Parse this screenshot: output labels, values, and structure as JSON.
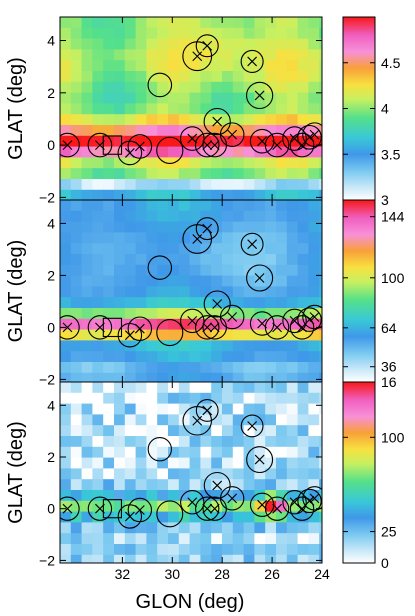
{
  "figure": {
    "xlabel": "GLON (deg)",
    "ylabel": "GLAT (deg)"
  },
  "chart_data": [
    {
      "type": "heatmap",
      "panel": "top",
      "xlim": [
        34.5,
        24
      ],
      "ylim": [
        -2.1,
        4.9
      ],
      "xticks": [
        32,
        30,
        28,
        26,
        24
      ],
      "yticks": [
        -2,
        0,
        2,
        4
      ],
      "colorbar": {
        "min": 3,
        "max": 5,
        "ticks": [
          3,
          3.5,
          4,
          4.5
        ],
        "tick_labels": [
          "3",
          "3.5",
          "4",
          "4.5"
        ]
      },
      "field": "bright band near GLAT 0; bright blob near GLON 27 GLAT 4; dark band near GLAT -1.7"
    },
    {
      "type": "heatmap",
      "panel": "middle",
      "xlim": [
        34.5,
        24
      ],
      "ylim": [
        -2.1,
        4.9
      ],
      "xticks": [
        32,
        30,
        28,
        26,
        24
      ],
      "yticks": [
        -2,
        0,
        2,
        4
      ],
      "colorbar": {
        "min": 25,
        "max": 156,
        "ticks": [
          36,
          64,
          100,
          144
        ],
        "tick_labels": [
          "36",
          "64",
          "100",
          "144"
        ]
      },
      "field": "bright band near GLAT 0; broad dark region GLAT 1.5-3.5"
    },
    {
      "type": "heatmap",
      "panel": "bottom",
      "xlim": [
        34.5,
        24
      ],
      "ylim": [
        -2.1,
        4.9
      ],
      "xticks": [
        32,
        30,
        28,
        26,
        24
      ],
      "yticks": [
        -2,
        0,
        2,
        4
      ],
      "colorbar": {
        "min": 0,
        "max": 144,
        "ticks": [
          0,
          25,
          100
        ],
        "tick_labels": [
          "0",
          "25",
          "100"
        ],
        "top_label": "16"
      },
      "field": "noisy; hot spot near GLON 25.9 GLAT 0.1"
    }
  ],
  "sources": {
    "circles": [
      {
        "l": 34.2,
        "b": 0.0,
        "r": 0.45
      },
      {
        "l": 32.9,
        "b": 0.0,
        "r": 0.45
      },
      {
        "l": 31.7,
        "b": -0.3,
        "r": 0.45
      },
      {
        "l": 31.3,
        "b": -0.05,
        "r": 0.45
      },
      {
        "l": 30.5,
        "b": 2.3,
        "r": 0.45
      },
      {
        "l": 30.1,
        "b": -0.2,
        "r": 0.5
      },
      {
        "l": 29.0,
        "b": 3.4,
        "r": 0.55
      },
      {
        "l": 28.6,
        "b": 3.8,
        "r": 0.42
      },
      {
        "l": 29.2,
        "b": 0.25,
        "r": 0.45
      },
      {
        "l": 28.6,
        "b": 0.0,
        "r": 0.45
      },
      {
        "l": 28.2,
        "b": 0.9,
        "r": 0.5
      },
      {
        "l": 28.3,
        "b": 0.0,
        "r": 0.45
      },
      {
        "l": 27.6,
        "b": 0.4,
        "r": 0.45
      },
      {
        "l": 26.8,
        "b": 3.2,
        "r": 0.42
      },
      {
        "l": 26.5,
        "b": 1.9,
        "r": 0.5
      },
      {
        "l": 26.4,
        "b": 0.15,
        "r": 0.45
      },
      {
        "l": 25.8,
        "b": 0.0,
        "r": 0.45
      },
      {
        "l": 25.1,
        "b": 0.25,
        "r": 0.45
      },
      {
        "l": 24.8,
        "b": 0.0,
        "r": 0.45
      },
      {
        "l": 24.5,
        "b": 0.3,
        "r": 0.45
      },
      {
        "l": 24.3,
        "b": 0.4,
        "r": 0.45
      }
    ],
    "crosses": [
      {
        "l": 34.2,
        "b": 0.0
      },
      {
        "l": 32.9,
        "b": 0.0
      },
      {
        "l": 31.7,
        "b": -0.3
      },
      {
        "l": 31.3,
        "b": -0.05
      },
      {
        "l": 29.0,
        "b": 3.4
      },
      {
        "l": 28.6,
        "b": 3.8
      },
      {
        "l": 29.2,
        "b": 0.25
      },
      {
        "l": 28.6,
        "b": 0.0
      },
      {
        "l": 28.2,
        "b": 0.9
      },
      {
        "l": 28.3,
        "b": 0.0
      },
      {
        "l": 27.6,
        "b": 0.4
      },
      {
        "l": 26.8,
        "b": 3.2
      },
      {
        "l": 26.5,
        "b": 1.9
      },
      {
        "l": 26.4,
        "b": 0.15
      },
      {
        "l": 25.8,
        "b": 0.0
      },
      {
        "l": 25.1,
        "b": 0.25
      },
      {
        "l": 24.8,
        "b": 0.0
      },
      {
        "l": 24.5,
        "b": 0.3
      },
      {
        "l": 24.3,
        "b": 0.4
      }
    ],
    "squares": [
      {
        "l": 32.4,
        "b": 0.0,
        "half": 0.35
      }
    ]
  }
}
